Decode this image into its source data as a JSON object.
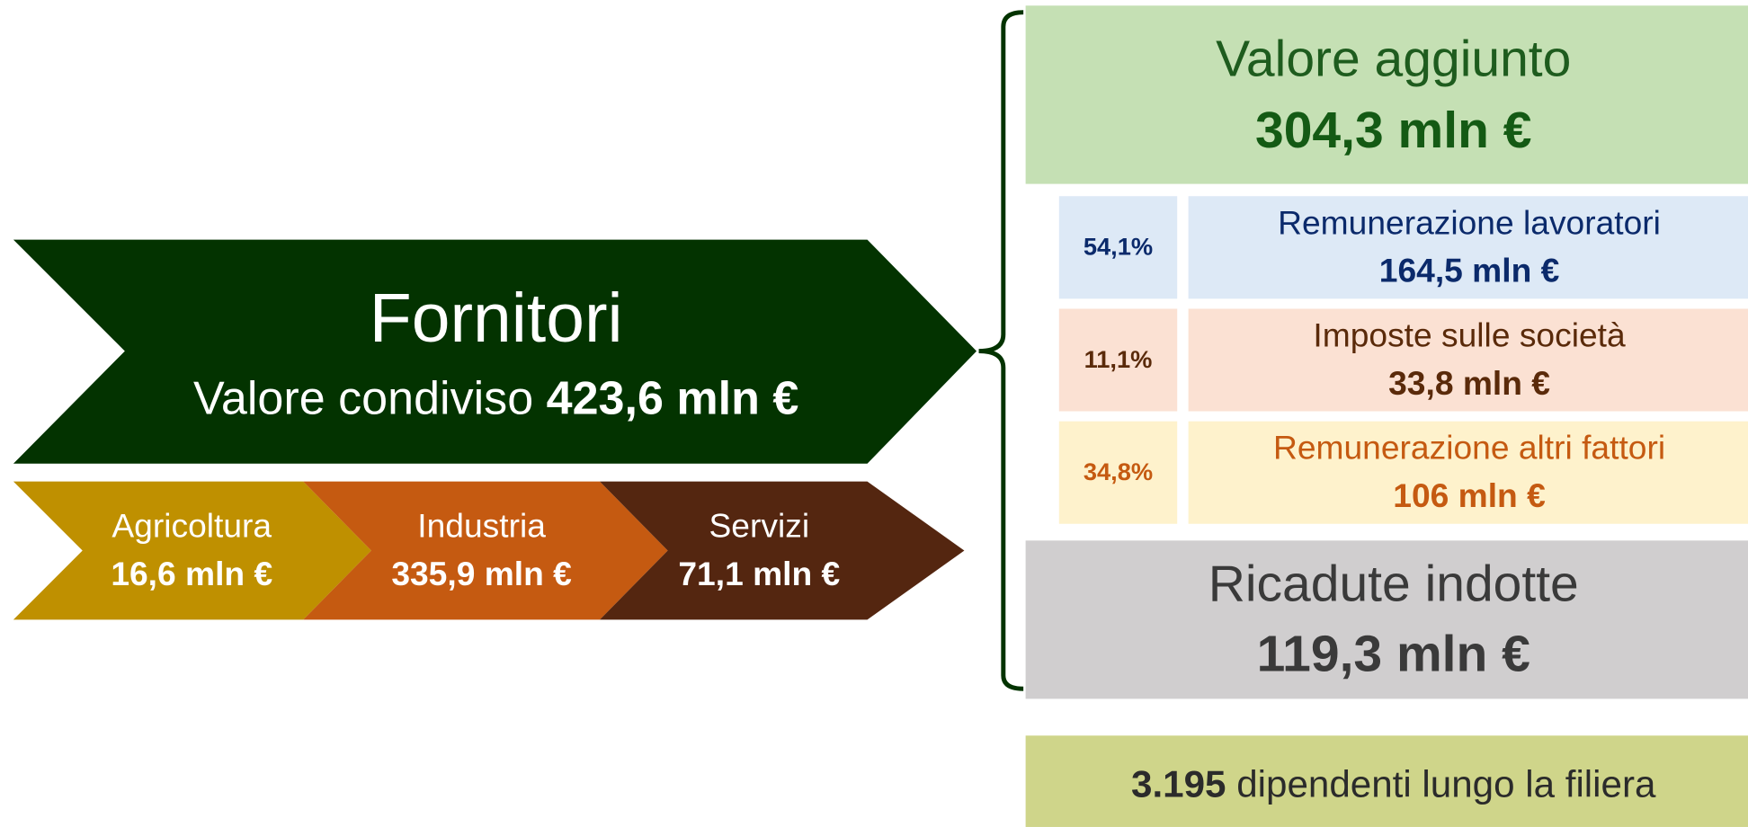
{
  "left": {
    "title": "Fornitori",
    "subtitle": "Valore condiviso",
    "value": "423,6 mln €",
    "sectors": [
      {
        "name": "Agricoltura",
        "value": "16,6 mln €"
      },
      {
        "name": "Industria",
        "value": "335,9 mln €"
      },
      {
        "name": "Servizi",
        "value": "71,1 mln €"
      }
    ]
  },
  "right": {
    "added_value": {
      "label": "Valore aggiunto",
      "value": "304,3 mln €"
    },
    "components": [
      {
        "share": "54,1%",
        "label": "Remunerazione lavoratori",
        "value": "164,5 mln €"
      },
      {
        "share": "11,1%",
        "label": "Imposte sulle società",
        "value": "33,8 mln €"
      },
      {
        "share": "34,8%",
        "label": "Remunerazione altri fattori",
        "value": "106 mln €"
      }
    ],
    "induced": {
      "label": "Ricadute indotte",
      "value": "119,3 mln €"
    },
    "employees": {
      "number": "3.195",
      "text": "dipendenti lungo la filiera"
    }
  }
}
